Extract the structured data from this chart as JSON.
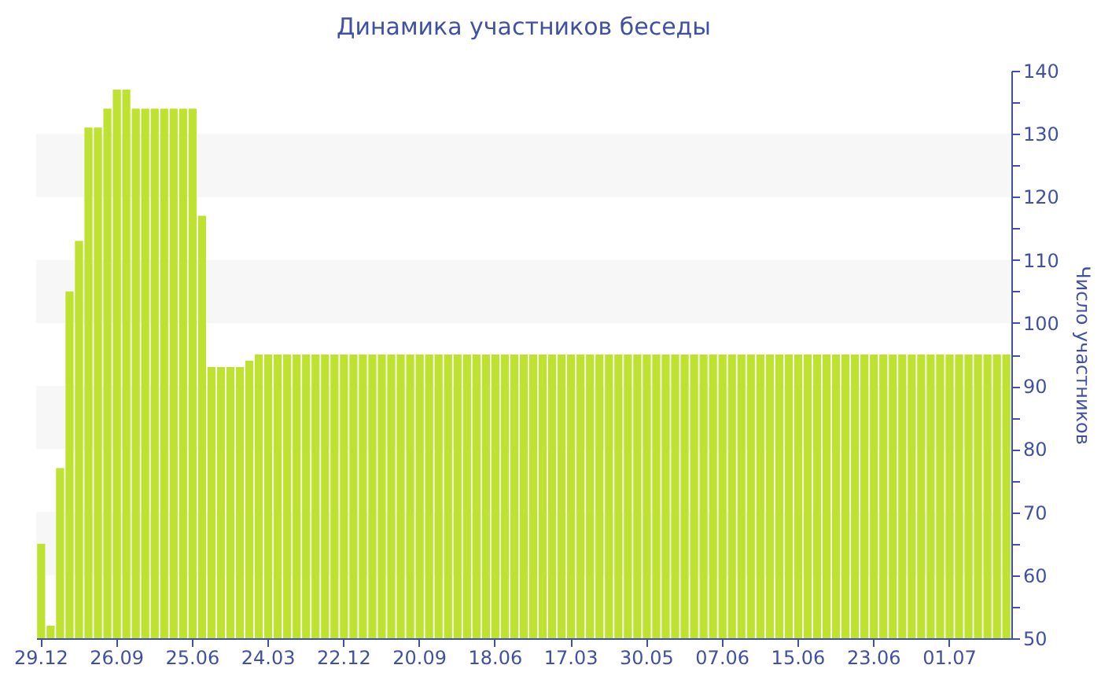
{
  "chart_data": {
    "type": "bar",
    "title": "Динамика участников беседы",
    "ylabel": "Число участников",
    "color": "#bde22f",
    "categories": [
      "29.12",
      null,
      null,
      null,
      null,
      null,
      null,
      null,
      "26.09",
      null,
      null,
      null,
      null,
      null,
      null,
      null,
      "25.06",
      null,
      null,
      null,
      null,
      null,
      null,
      null,
      "24.03",
      null,
      null,
      null,
      null,
      null,
      null,
      null,
      "22.12",
      null,
      null,
      null,
      null,
      null,
      null,
      null,
      "20.09",
      null,
      null,
      null,
      null,
      null,
      null,
      null,
      "18.06",
      null,
      null,
      null,
      null,
      null,
      null,
      null,
      "17.03",
      null,
      null,
      null,
      null,
      null,
      null,
      null,
      "30.05",
      null,
      null,
      null,
      null,
      null,
      null,
      null,
      "07.06",
      null,
      null,
      null,
      null,
      null,
      null,
      null,
      "15.06",
      null,
      null,
      null,
      null,
      null,
      null,
      null,
      "23.06",
      null,
      null,
      null,
      null,
      null,
      null,
      null,
      "01.07",
      null,
      null,
      null,
      null,
      null,
      null
    ],
    "values": [
      65,
      52,
      77,
      105,
      113,
      131,
      131,
      134,
      137,
      137,
      134,
      134,
      134,
      134,
      134,
      134,
      134,
      117,
      93,
      93,
      93,
      93,
      94,
      95,
      95,
      95,
      95,
      95,
      95,
      95,
      95,
      95,
      95,
      95,
      95,
      95,
      95,
      95,
      95,
      95,
      95,
      95,
      95,
      95,
      95,
      95,
      95,
      95,
      95,
      95,
      95,
      95,
      95,
      95,
      95,
      95,
      95,
      95,
      95,
      95,
      95,
      95,
      95,
      95,
      95,
      95,
      95,
      95,
      95,
      95,
      95,
      95,
      95,
      95,
      95,
      95,
      95,
      95,
      95,
      95,
      95,
      95,
      95,
      95,
      95,
      95,
      95,
      95,
      95,
      95,
      95,
      95,
      95,
      95,
      95,
      95,
      95,
      95,
      95,
      95,
      95,
      95,
      95
    ],
    "ylim": [
      50,
      140
    ],
    "yticks": [
      50,
      {
        "value": 55,
        "label": null
      },
      60,
      {
        "value": 65,
        "label": null
      },
      70,
      {
        "value": 75,
        "label": null
      },
      80,
      {
        "value": 85,
        "label": null
      },
      90,
      {
        "value": 95,
        "label": null
      },
      100,
      {
        "value": 105,
        "label": null
      },
      110,
      {
        "value": 115,
        "label": null
      },
      120,
      {
        "value": 125,
        "label": null
      },
      130,
      {
        "value": 135,
        "label": null
      },
      140
    ],
    "tick_labels": "y",
    "legend": false
  }
}
